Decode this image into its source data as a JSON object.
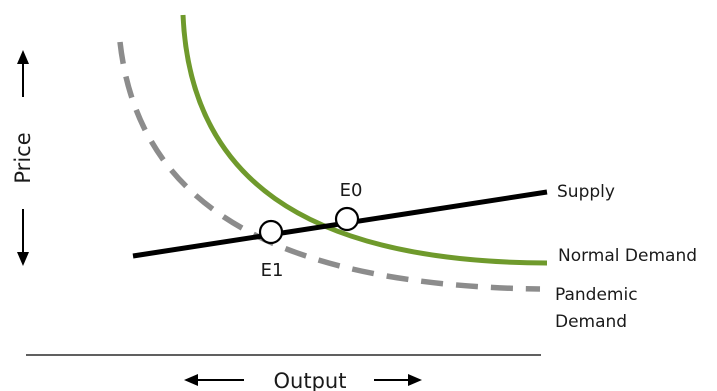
{
  "axes": {
    "y_label": "Price",
    "x_label": "Output"
  },
  "curves": {
    "supply": {
      "label": "Supply",
      "color": "#000000"
    },
    "normal_demand": {
      "label": "Normal Demand",
      "color": "#6f9a2c"
    },
    "pandemic_demand": {
      "label_line1": "Pandemic",
      "label_line2": "Demand",
      "color": "#8c8c8c",
      "style": "dashed"
    }
  },
  "points": {
    "e0": {
      "label": "E0"
    },
    "e1": {
      "label": "E1"
    }
  }
}
